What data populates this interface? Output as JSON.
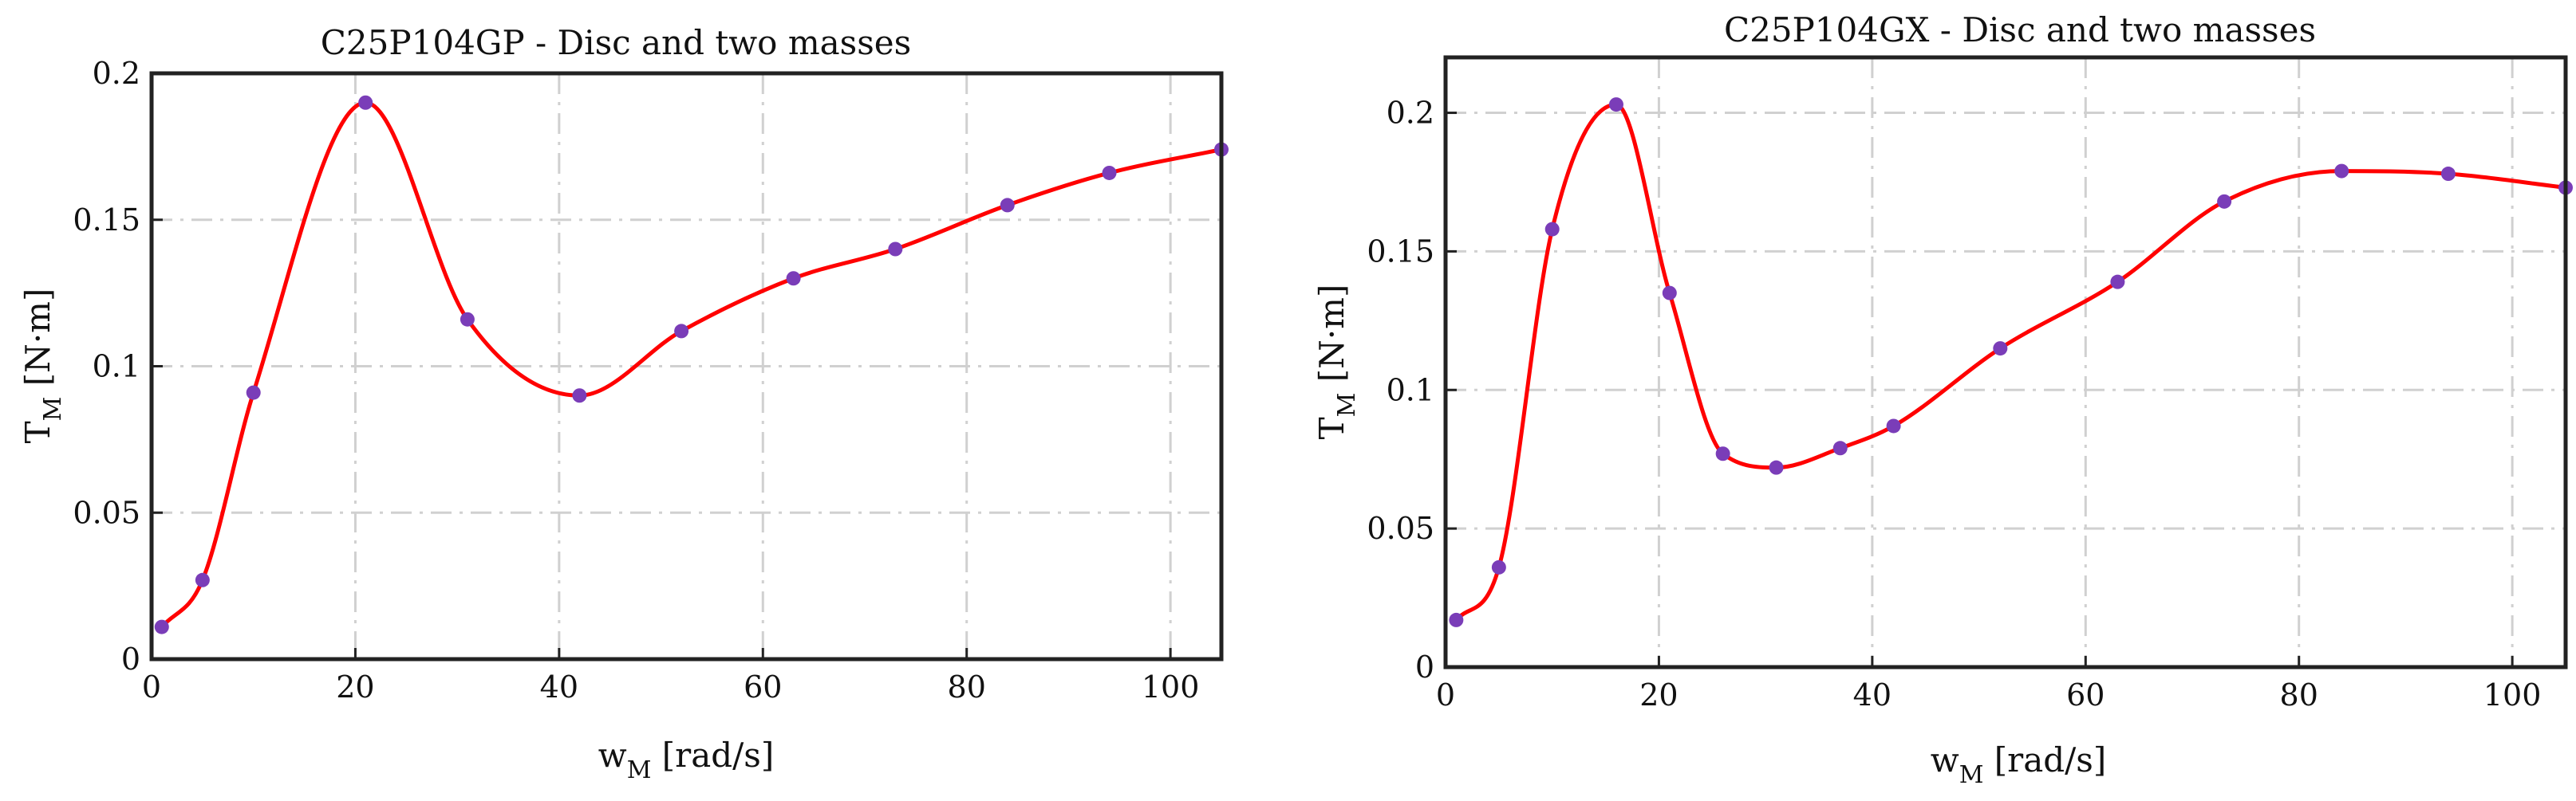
{
  "chart_data": [
    {
      "type": "line",
      "title": "C25P104GP - Disc and two masses",
      "xlabel": "w",
      "xlabel_sub": "M",
      "xlabel_unit": " [rad/s]",
      "ylabel": "T",
      "ylabel_sub": "M",
      "ylabel_unit": " [N·m]",
      "xlim": [
        0,
        105
      ],
      "ylim": [
        0,
        0.2
      ],
      "xticks": [
        0,
        20,
        40,
        60,
        80,
        100
      ],
      "yticks": [
        0,
        0.05,
        0.1,
        0.15,
        0.2
      ],
      "xtick_labels": [
        "0",
        "20",
        "40",
        "60",
        "80",
        "100"
      ],
      "ytick_labels": [
        "0",
        "0.05",
        "0.1",
        "0.15",
        "0.2"
      ],
      "grid": true,
      "series": [
        {
          "name": "T_M",
          "x": [
            1,
            5,
            10,
            21,
            31,
            42,
            52,
            63,
            73,
            84,
            94,
            105
          ],
          "values": [
            0.011,
            0.027,
            0.091,
            0.19,
            0.116,
            0.09,
            0.112,
            0.13,
            0.14,
            0.155,
            0.166,
            0.174
          ],
          "line_color": "#ff0000",
          "marker_color": "#7a3db8"
        }
      ]
    },
    {
      "type": "line",
      "title": "C25P104GX - Disc and two masses",
      "xlabel": "w",
      "xlabel_sub": "M",
      "xlabel_unit": " [rad/s]",
      "ylabel": "T",
      "ylabel_sub": "M",
      "ylabel_unit": " [N·m]",
      "xlim": [
        0,
        105
      ],
      "ylim": [
        0,
        0.22
      ],
      "xticks": [
        0,
        20,
        40,
        60,
        80,
        100
      ],
      "yticks": [
        0,
        0.05,
        0.1,
        0.15,
        0.2
      ],
      "xtick_labels": [
        "0",
        "20",
        "40",
        "60",
        "80",
        "100"
      ],
      "ytick_labels": [
        "0",
        "0.05",
        "0.1",
        "0.15",
        "0.2"
      ],
      "grid": true,
      "series": [
        {
          "name": "T_M",
          "x": [
            1,
            5,
            10,
            16,
            21,
            26,
            31,
            37,
            42,
            52,
            63,
            73,
            84,
            94,
            105
          ],
          "values": [
            0.017,
            0.036,
            0.158,
            0.203,
            0.135,
            0.077,
            0.072,
            0.079,
            0.087,
            0.115,
            0.139,
            0.168,
            0.179,
            0.178,
            0.173
          ],
          "line_color": "#ff0000",
          "marker_color": "#7a3db8"
        }
      ]
    }
  ]
}
